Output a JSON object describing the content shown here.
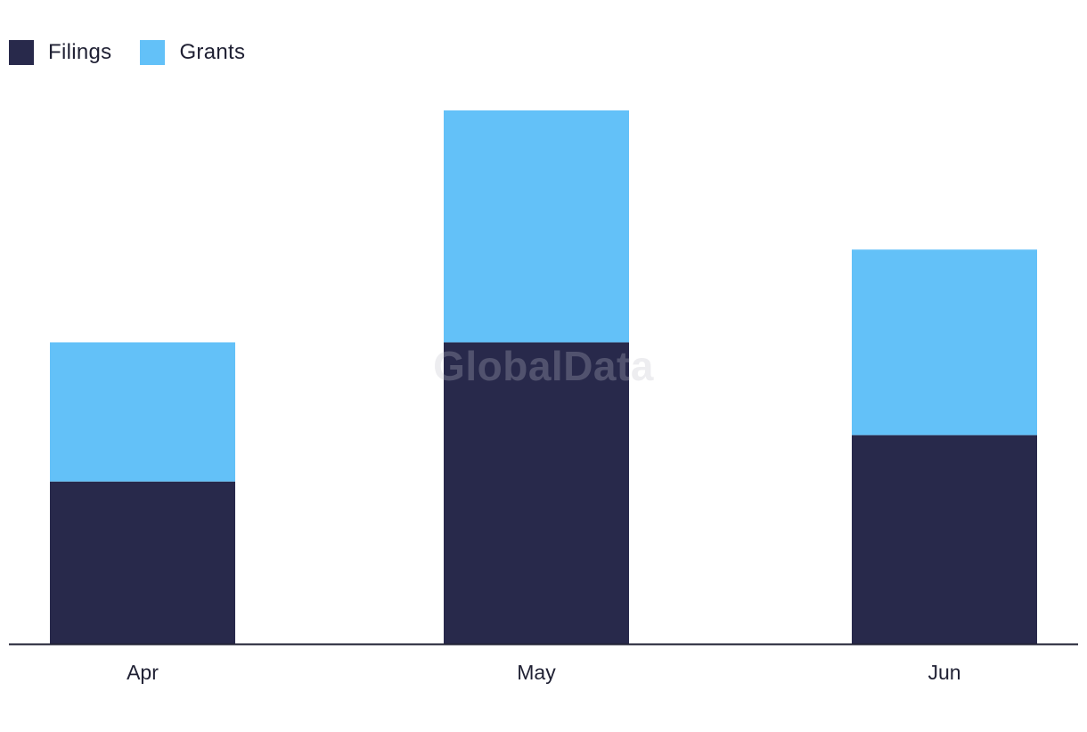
{
  "watermark": "GlobalData",
  "legend": [
    {
      "label": "Filings",
      "color": "#28294b"
    },
    {
      "label": "Grants",
      "color": "#63c1f8"
    }
  ],
  "chart_data": {
    "type": "bar",
    "stacked": true,
    "categories": [
      "Apr",
      "May",
      "Jun"
    ],
    "series": [
      {
        "name": "Filings",
        "color": "#28294b",
        "values": [
          7,
          13,
          9
        ]
      },
      {
        "name": "Grants",
        "color": "#63c1f8",
        "values": [
          6,
          10,
          8
        ]
      }
    ],
    "ylim": [
      0,
      23
    ],
    "legend_position": "top-left",
    "grid": false,
    "title": "",
    "xlabel": "",
    "ylabel": ""
  }
}
